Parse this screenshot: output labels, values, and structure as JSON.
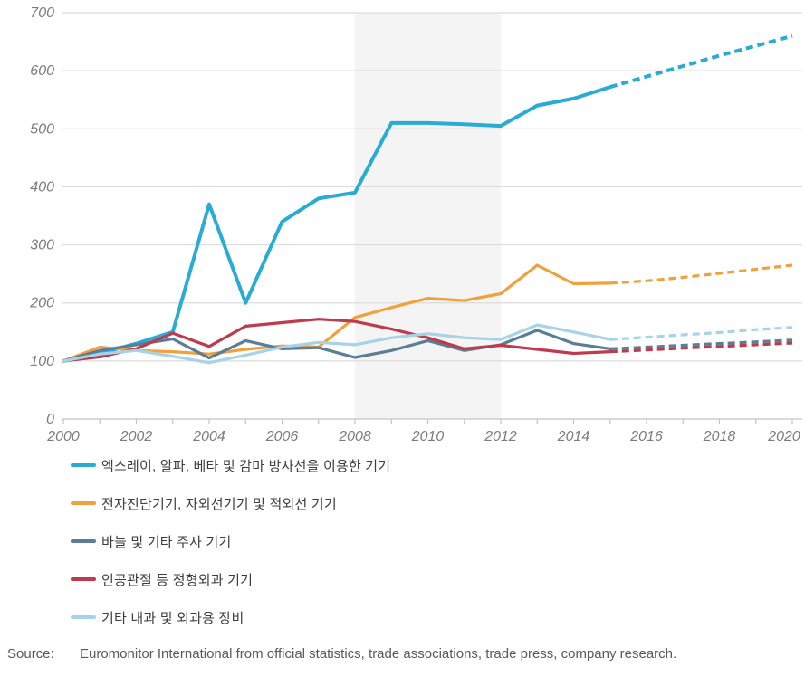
{
  "chart_data": {
    "type": "line",
    "title": "",
    "xlabel": "",
    "ylabel": "",
    "x": [
      2000,
      2001,
      2002,
      2003,
      2004,
      2005,
      2006,
      2007,
      2008,
      2009,
      2010,
      2011,
      2012,
      2013,
      2014,
      2015,
      2016,
      2017,
      2018,
      2019,
      2020
    ],
    "series": [
      {
        "id": "xray-alpha-beta-gamma-devices",
        "name": "엑스레이, 알파, 베타 및 감마 방사선을 이용한 기기",
        "color": "#29ABD6",
        "stroke_width": 4,
        "values": [
          100,
          113,
          130,
          150,
          370,
          200,
          340,
          380,
          390,
          510,
          510,
          508,
          505,
          540,
          552,
          572,
          590,
          608,
          626,
          643,
          660
        ]
      },
      {
        "id": "electro-diagnostic-uv-ir-devices",
        "name": "전자진단기기, 자외선기기 및 적외선 기기",
        "color": "#F0A03C",
        "stroke_width": 3.2,
        "values": [
          100,
          124,
          118,
          116,
          112,
          120,
          126,
          124,
          175,
          192,
          208,
          204,
          216,
          265,
          233,
          234,
          238,
          244,
          251,
          258,
          265
        ]
      },
      {
        "id": "needles-and-syringes-devices",
        "name": "바늘 및 기타 주사 기기",
        "color": "#5A7E98",
        "stroke_width": 3.2,
        "values": [
          100,
          118,
          128,
          138,
          105,
          135,
          121,
          123,
          106,
          118,
          135,
          118,
          128,
          153,
          130,
          121,
          124,
          127,
          130,
          133,
          136
        ]
      },
      {
        "id": "orthopedic-artificial-joint-devices",
        "name": "인공관절 등 정형외과 기기",
        "color": "#BE3A4C",
        "stroke_width": 3.2,
        "values": [
          100,
          107,
          121,
          148,
          125,
          160,
          166,
          172,
          168,
          155,
          140,
          121,
          127,
          120,
          113,
          116,
          119,
          122,
          125,
          128,
          131
        ]
      },
      {
        "id": "other-medical-surgical-equipment",
        "name": "기타 내과 및 외과용 장비",
        "color": "#A6D3E8",
        "stroke_width": 3.2,
        "values": [
          100,
          112,
          118,
          108,
          97,
          110,
          124,
          132,
          128,
          140,
          147,
          140,
          137,
          162,
          150,
          137,
          141,
          145,
          149,
          154,
          158
        ]
      }
    ],
    "forecast_from": 2015,
    "forecast_style": "dashed",
    "ylim": [
      0,
      700
    ],
    "yticks": [
      0,
      100,
      200,
      300,
      400,
      500,
      600,
      700
    ],
    "xticks_labeled": [
      2000,
      2002,
      2004,
      2006,
      2008,
      2010,
      2012,
      2014,
      2016,
      2018,
      2020
    ],
    "xticks_minor_step": 1,
    "grid": "horizontal",
    "gridline_color": "#dcdcdc",
    "axis_line_color": "#c4c4c4",
    "highlight_band": {
      "from": 2008,
      "to": 2012,
      "color": "#f4f4f4"
    },
    "legend_position": "bottom-left"
  },
  "source": {
    "label": "Source:",
    "text": "Euromonitor International from official statistics, trade associations, trade press, company research."
  }
}
